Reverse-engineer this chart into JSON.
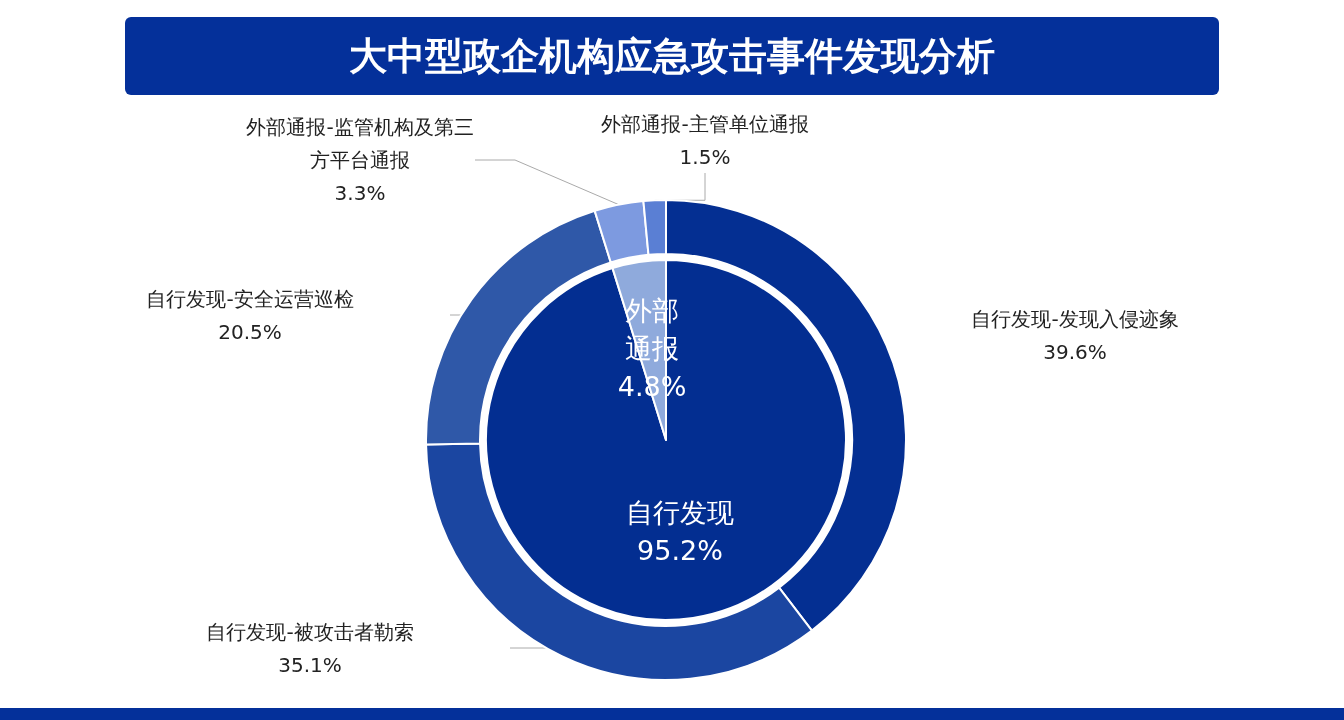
{
  "chart_data": [
    {
      "type": "pie",
      "title": "大中型政企机构应急攻击事件发现分析",
      "categories": [
        "自行发现",
        "外部通报"
      ],
      "values": [
        95.2,
        4.8
      ],
      "value_labels": [
        "95.2%",
        "4.8%"
      ],
      "colors": [
        "#032e91",
        "#8faadc"
      ]
    },
    {
      "type": "donut",
      "categories": [
        "自行发现-发现入侵迹象",
        "自行发现-被攻击者勒索",
        "自行发现-安全运营巡检",
        "外部通报-监管机构及第三方平台通报",
        "外部通报-主管单位通报"
      ],
      "values": [
        39.6,
        35.1,
        20.5,
        3.3,
        1.5
      ],
      "value_labels": [
        "39.6%",
        "35.1%",
        "20.5%",
        "3.3%",
        "1.5%"
      ],
      "colors": [
        "#042f92",
        "#1b46a1",
        "#2f58a8",
        "#7d9ae0",
        "#5a7fd4"
      ]
    }
  ]
}
